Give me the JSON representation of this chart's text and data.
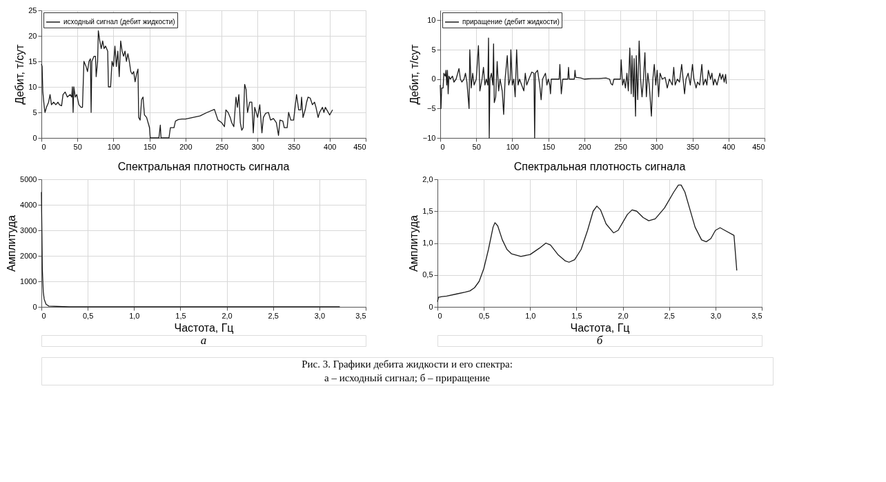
{
  "chart_data": [
    {
      "type": "line",
      "ylabel": "Дебит, т/сут",
      "legend": "top left",
      "grid": true,
      "xlim": [
        0,
        450
      ],
      "xticks": [
        0,
        50,
        100,
        150,
        200,
        250,
        300,
        350,
        400,
        450
      ],
      "ylim": [
        0,
        25
      ],
      "yticks": [
        0,
        5,
        10,
        15,
        20,
        25
      ],
      "series": [
        {
          "name": "исходный сигнал (дебит жидкости)",
          "color": "#1a1a1a",
          "x": [
            0,
            1,
            2,
            4,
            5,
            7,
            10,
            12,
            14,
            17,
            20,
            23,
            25,
            28,
            30,
            33,
            36,
            40,
            42,
            43,
            44,
            45,
            47,
            49,
            52,
            55,
            57,
            59,
            62,
            64,
            66,
            68,
            69,
            70,
            73,
            75,
            76,
            78,
            79,
            81,
            83,
            85,
            87,
            89,
            92,
            93,
            96,
            98,
            100,
            102,
            104,
            106,
            108,
            110,
            112,
            114,
            116,
            118,
            120,
            122,
            124,
            126,
            128,
            130,
            132,
            134,
            135,
            137,
            139,
            141,
            143,
            146,
            148,
            150,
            151,
            163,
            165,
            166,
            177,
            179,
            184,
            186,
            190,
            195,
            200,
            210,
            220,
            230,
            240,
            245,
            250,
            254,
            256,
            259,
            262,
            264,
            267,
            270,
            272,
            274,
            276,
            278,
            280,
            282,
            284,
            286,
            289,
            292,
            294,
            296,
            300,
            303,
            306,
            308,
            311,
            315,
            318,
            322,
            326,
            329,
            331,
            335,
            337,
            341,
            343,
            346,
            350,
            352,
            354,
            357,
            360,
            361,
            363,
            366,
            368,
            370,
            373,
            376,
            379,
            381,
            384,
            386,
            390,
            392,
            394,
            400,
            404
          ],
          "values": [
            14.5,
            14,
            9,
            6,
            5,
            6,
            7,
            8.5,
            6.5,
            7,
            6.5,
            7,
            6.5,
            6.3,
            8.5,
            9,
            8,
            8.5,
            8,
            10,
            5,
            10,
            8,
            8.5,
            6.5,
            6,
            6,
            15,
            14,
            13,
            15,
            15.5,
            5,
            15,
            16,
            16,
            12,
            15,
            21,
            19,
            17.5,
            19,
            17.5,
            18,
            17,
            10,
            10,
            15,
            14,
            18,
            14,
            17,
            12,
            19,
            17,
            16,
            17,
            15,
            16.5,
            15,
            13,
            12.5,
            13,
            11,
            12.5,
            13.5,
            4,
            3.5,
            7.5,
            8,
            4.5,
            4,
            3,
            2,
            0,
            0,
            2.5,
            0,
            0,
            2,
            2,
            3.3,
            3.6,
            3.7,
            3.7,
            4,
            4.3,
            5,
            5.6,
            3.5,
            3,
            2.2,
            5.5,
            5,
            4,
            3,
            2.2,
            8,
            6,
            8.5,
            3,
            1.5,
            2,
            10.5,
            9.5,
            5,
            7,
            7,
            1,
            6,
            4,
            6.5,
            1,
            4,
            4.8,
            5,
            3.5,
            3.8,
            3,
            0.5,
            3.5,
            3.3,
            2,
            2,
            5,
            3.5,
            3.5,
            6,
            8.5,
            5.5,
            5.5,
            8,
            4,
            5.5,
            7,
            8,
            7.8,
            6.5,
            7,
            6,
            4,
            5,
            6,
            5,
            6,
            4.5,
            5.5
          ]
        }
      ]
    },
    {
      "type": "line",
      "ylabel": "Дебит, т/сут",
      "legend": "top left",
      "grid": true,
      "xlim": [
        0,
        450
      ],
      "xticks": [
        0,
        50,
        100,
        150,
        200,
        250,
        300,
        350,
        400,
        450
      ],
      "ylim": [
        -10,
        11.7
      ],
      "yticks": [
        {
          "value": -10,
          "label": "−10"
        },
        {
          "value": -5,
          "label": "−5"
        },
        0,
        5,
        10
      ],
      "series": [
        {
          "name": "приращение (дебит жидкости)",
          "color": "#1a1a1a",
          "x": [
            0,
            1,
            2,
            4,
            5,
            7,
            8,
            9,
            10,
            11,
            12,
            14,
            17,
            19,
            22,
            26,
            28,
            30,
            33,
            35,
            37,
            40,
            41,
            43,
            45,
            47,
            50,
            53,
            55,
            58,
            60,
            62,
            64,
            66,
            67,
            68,
            69,
            71,
            73,
            74,
            75,
            77,
            79,
            81,
            83,
            86,
            88,
            90,
            93,
            95,
            97,
            98,
            100,
            102,
            104,
            106,
            108,
            110,
            113,
            116,
            118,
            120,
            123,
            127,
            130,
            131,
            132,
            135,
            138,
            140,
            142,
            146,
            148,
            150,
            152,
            153,
            154,
            165,
            166,
            168,
            170,
            177,
            178,
            179,
            186,
            187,
            188,
            195,
            200,
            210,
            220,
            230,
            235,
            237,
            239,
            241,
            250,
            251,
            253,
            255,
            257,
            259,
            261,
            263,
            265,
            266,
            268,
            269,
            271,
            272,
            274,
            276,
            278,
            280,
            282,
            284,
            286,
            288,
            290,
            293,
            295,
            297,
            299,
            301,
            303,
            305,
            308,
            312,
            315,
            318,
            322,
            324,
            326,
            329,
            332,
            335,
            337,
            339,
            341,
            344,
            347,
            350,
            352,
            355,
            357,
            360,
            363,
            365,
            368,
            370,
            372,
            375,
            377,
            379,
            381,
            384,
            386,
            388,
            390,
            392,
            394,
            396,
            397
          ],
          "values": [
            -1,
            -5,
            -1.5,
            -1.5,
            1,
            0.5,
            1.5,
            -1,
            1.5,
            -2.5,
            0.5,
            0,
            0.5,
            -0.5,
            0,
            1.8,
            0,
            -0.5,
            0,
            1,
            -0.5,
            -5,
            5,
            -1.5,
            1,
            -1,
            0,
            5.7,
            -2,
            0,
            2,
            -1,
            0,
            -1,
            7,
            -10,
            0,
            1,
            -1,
            6,
            -4,
            -3,
            3,
            -2,
            0,
            -2,
            -6,
            0,
            4,
            -1,
            0,
            5,
            -1,
            0,
            -3,
            5,
            -1,
            0,
            -1,
            -2,
            1,
            -1,
            0,
            1.2,
            1,
            -10,
            1,
            1.5,
            -1,
            -3.5,
            0,
            1,
            -1,
            0,
            -1,
            -2.5,
            0,
            0,
            2.5,
            -2.5,
            0,
            0,
            2,
            0,
            0,
            1.5,
            0.3,
            0.2,
            0,
            0.1,
            0.1,
            0.2,
            0,
            -0.8,
            -1,
            0,
            0,
            3.3,
            -1,
            0,
            -1.5,
            1,
            -2,
            5.3,
            -2.5,
            4,
            -3,
            3.5,
            -6.3,
            4,
            -3.5,
            6.5,
            0,
            -3,
            0,
            4.5,
            -3,
            1,
            -1,
            -6.3,
            0,
            2.5,
            -1,
            1.5,
            -3,
            1,
            0,
            0.3,
            -1.5,
            0,
            -1,
            2,
            -1,
            0,
            -0.5,
            2.5,
            0,
            -2.5,
            0,
            1,
            -1,
            2.5,
            0,
            -1.5,
            -0.5,
            -1,
            2.5,
            -1,
            0,
            -1,
            1.5,
            0,
            1,
            -1,
            0,
            -1,
            0,
            1,
            0,
            0.8,
            -0.5,
            0.8,
            -0.8
          ]
        }
      ]
    },
    {
      "type": "line",
      "title": "Спектральная плотность сигнала",
      "xlabel": "Частота, Гц",
      "ylabel": "Амплитуда",
      "grid": true,
      "legend": false,
      "annotations": [
        "а"
      ],
      "xlim": [
        0,
        3.5
      ],
      "xticks": [
        0,
        {
          "value": 0.5,
          "label": "0,5"
        },
        {
          "value": 1,
          "label": "1,0"
        },
        {
          "value": 1.5,
          "label": "1,5"
        },
        {
          "value": 2,
          "label": "2,0"
        },
        {
          "value": 2.5,
          "label": "2,5"
        },
        {
          "value": 3,
          "label": "3,0"
        },
        {
          "value": 3.5,
          "label": "3,5"
        }
      ],
      "ylim": [
        0,
        5000
      ],
      "yticks": [
        0,
        1000,
        2000,
        3000,
        4000,
        5000
      ],
      "series": [
        {
          "color": "#1a1a1a",
          "x": [
            0,
            0.005,
            0.01,
            0.02,
            0.03,
            0.05,
            0.08,
            0.3,
            3.22
          ],
          "values": [
            4500,
            3000,
            1500,
            600,
            300,
            100,
            30,
            0,
            0
          ]
        }
      ]
    },
    {
      "type": "line",
      "title": "Спектральная плотность сигнала",
      "xlabel": "Частота, Гц",
      "ylabel": "Амплитуда",
      "grid": true,
      "legend": false,
      "annotations": [
        "б",
        "Рис. 3. Графики дебита жидкости и его спектра:",
        "а – исходный сигнал; б – приращение"
      ],
      "xlim": [
        0,
        3.5
      ],
      "xticks": [
        0,
        {
          "value": 0.5,
          "label": "0,5"
        },
        {
          "value": 1,
          "label": "1,0"
        },
        {
          "value": 1.5,
          "label": "1,5"
        },
        {
          "value": 2,
          "label": "2,0"
        },
        {
          "value": 2.5,
          "label": "2,5"
        },
        {
          "value": 3,
          "label": "3,0"
        },
        {
          "value": 3.5,
          "label": "3,5"
        }
      ],
      "ylim": [
        0,
        2
      ],
      "yticks": [
        0,
        {
          "value": 0.5,
          "label": "0,5"
        },
        {
          "value": 1,
          "label": "1,0"
        },
        {
          "value": 1.5,
          "label": "1,5"
        },
        {
          "value": 2,
          "label": "2,0"
        }
      ],
      "series": [
        {
          "color": "#1a1a1a",
          "x": [
            0,
            0.01,
            0.05,
            0.1,
            0.2,
            0.3,
            0.35,
            0.4,
            0.45,
            0.5,
            0.55,
            0.6,
            0.62,
            0.65,
            0.7,
            0.75,
            0.8,
            0.9,
            1.0,
            1.1,
            1.17,
            1.22,
            1.3,
            1.38,
            1.42,
            1.48,
            1.55,
            1.62,
            1.68,
            1.72,
            1.76,
            1.82,
            1.9,
            1.95,
            2.05,
            2.1,
            2.15,
            2.22,
            2.28,
            2.35,
            2.45,
            2.55,
            2.6,
            2.63,
            2.67,
            2.72,
            2.78,
            2.85,
            2.9,
            2.95,
            3.0,
            3.05,
            3.1,
            3.2,
            3.23
          ],
          "values": [
            0.08,
            0.15,
            0.16,
            0.17,
            0.2,
            0.23,
            0.25,
            0.3,
            0.4,
            0.6,
            0.9,
            1.25,
            1.32,
            1.27,
            1.05,
            0.9,
            0.83,
            0.79,
            0.82,
            0.92,
            1.0,
            0.97,
            0.82,
            0.72,
            0.7,
            0.74,
            0.9,
            1.2,
            1.5,
            1.58,
            1.52,
            1.3,
            1.16,
            1.2,
            1.45,
            1.52,
            1.5,
            1.4,
            1.35,
            1.38,
            1.55,
            1.8,
            1.91,
            1.91,
            1.8,
            1.55,
            1.25,
            1.05,
            1.02,
            1.07,
            1.2,
            1.24,
            1.2,
            1.12,
            0.57
          ]
        }
      ]
    }
  ]
}
